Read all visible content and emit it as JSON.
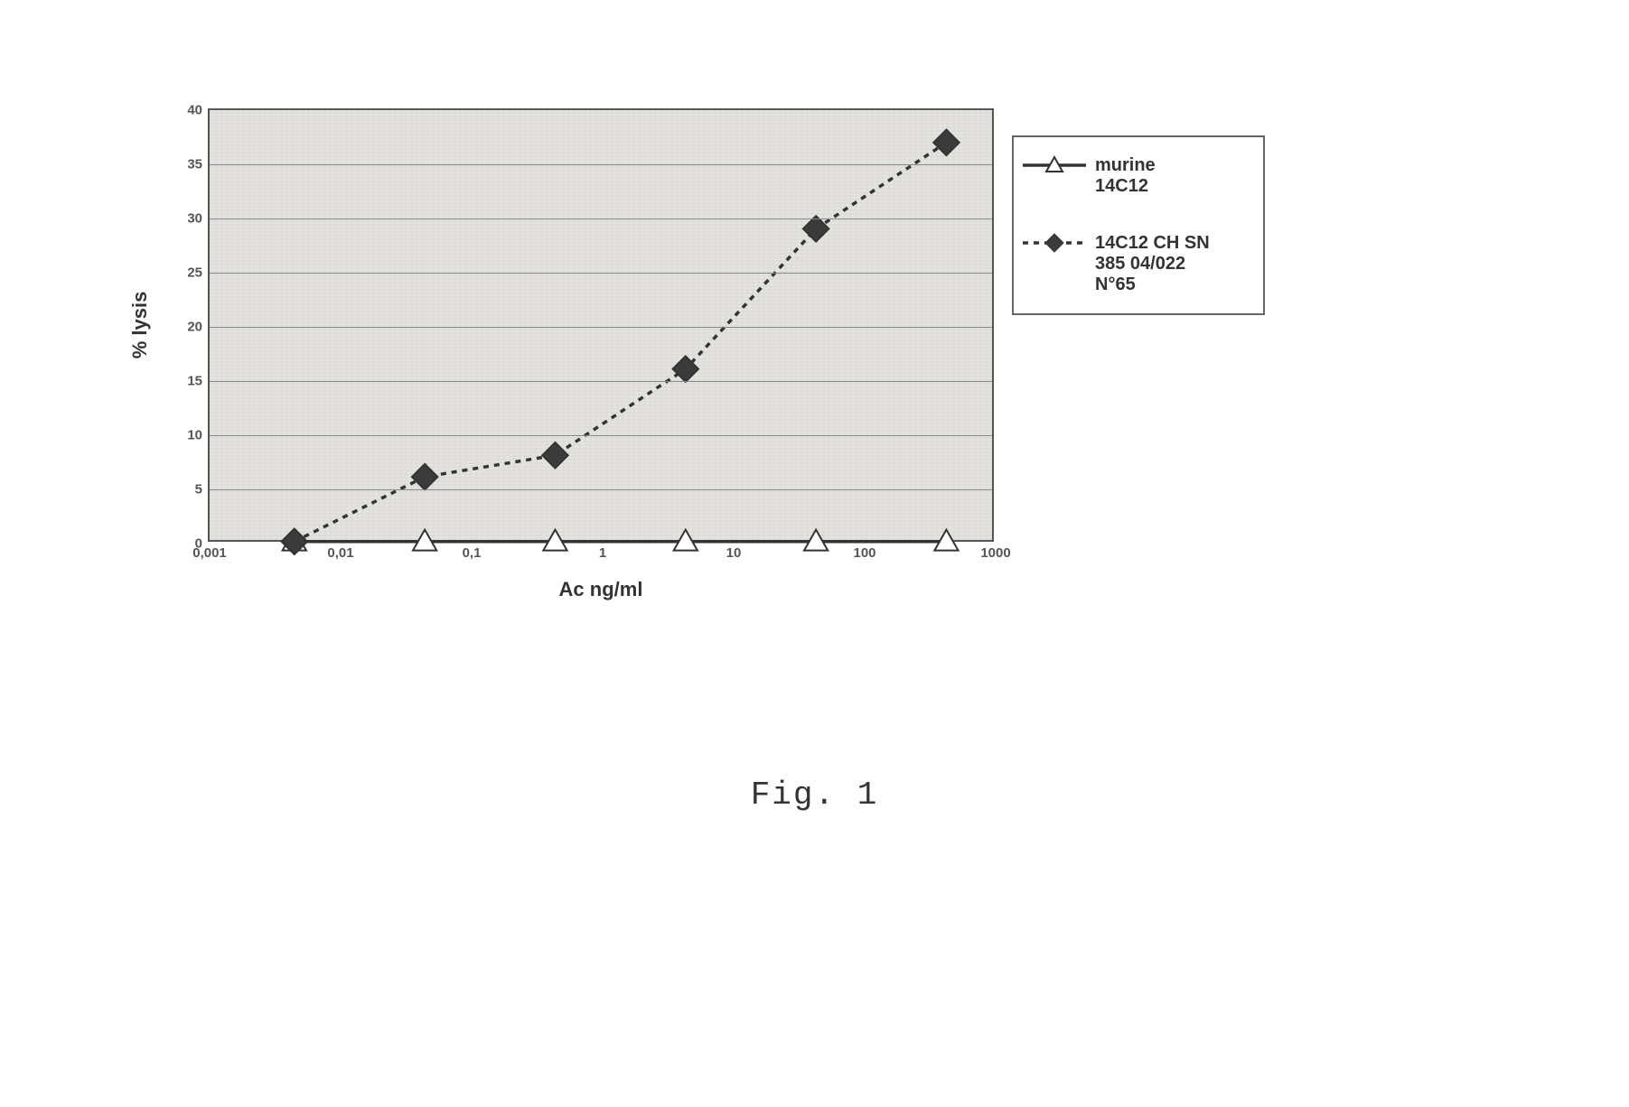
{
  "chart": {
    "type": "line-scatter-logx",
    "background_color": "#e6e4e0",
    "border_color": "#555555",
    "grid_color": "#888888",
    "ylabel": "% lysis",
    "xlabel": "Ac ng/ml",
    "label_fontsize": 22,
    "tick_fontsize": 15,
    "tick_color": "#555555",
    "ylim": [
      0,
      40
    ],
    "ytick_step": 5,
    "yticks": [
      0,
      5,
      10,
      15,
      20,
      25,
      30,
      35,
      40
    ],
    "x_log_min_exp": -3,
    "x_log_max_exp": 3,
    "xticks_exp": [
      -3,
      -2,
      -1,
      0,
      1,
      2,
      3
    ],
    "xtick_labels": [
      "0,001",
      "0,01",
      "0,1",
      "1",
      "10",
      "100",
      "1000"
    ],
    "series": [
      {
        "id": "murine",
        "legend_label": "murine 14C12",
        "line_color": "#333333",
        "line_width": 3.5,
        "line_dash": "none",
        "marker": "triangle-open",
        "marker_stroke": "#333333",
        "marker_fill": "#ffffff",
        "marker_size": 22,
        "x_exp": [
          -2.35,
          -1.35,
          -0.35,
          0.65,
          1.65,
          2.65
        ],
        "y": [
          0,
          0,
          0,
          0,
          0,
          0
        ]
      },
      {
        "id": "chsn",
        "legend_label": "14C12 CH SN 385 04/022 N°65",
        "line_color": "#333333",
        "line_width": 3.5,
        "line_dash": "6,6",
        "marker": "diamond",
        "marker_stroke": "#333333",
        "marker_fill": "#3b3b3b",
        "marker_size": 26,
        "x_exp": [
          -2.35,
          -1.35,
          -0.35,
          0.65,
          1.65,
          2.65
        ],
        "y": [
          0,
          6,
          8,
          16,
          29,
          37
        ]
      }
    ]
  },
  "legend": {
    "border_color": "#666666",
    "background": "#ffffff",
    "fontsize": 20,
    "items": [
      {
        "series_id": "murine",
        "label_line1": "murine",
        "label_line2": "14C12"
      },
      {
        "series_id": "chsn",
        "label_line1": "14C12 CH SN",
        "label_line2": "385 04/022",
        "label_line3": "N°65"
      }
    ]
  },
  "caption": "Fig. 1"
}
